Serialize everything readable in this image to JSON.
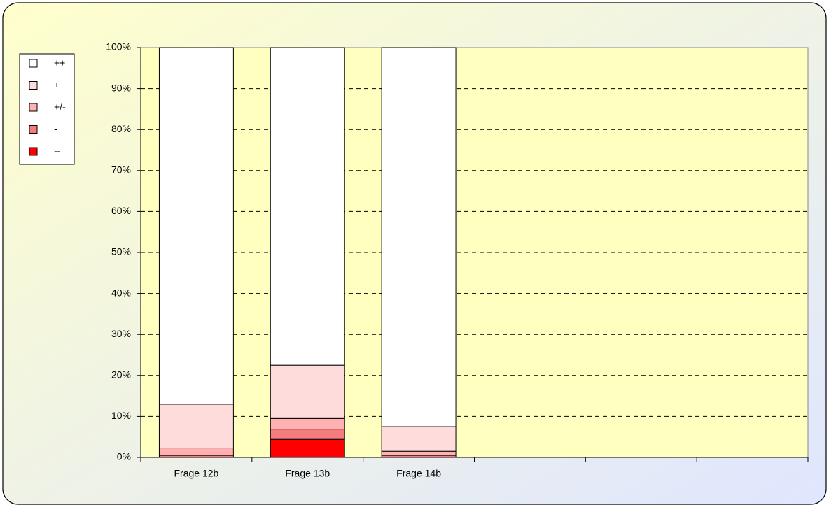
{
  "chart_data": {
    "type": "stacked_bar",
    "categories": [
      "Frage 12b",
      "Frage 13b",
      "Frage 14b",
      null,
      null,
      null
    ],
    "series": [
      {
        "name": "--",
        "color": "#ff0000",
        "values": [
          0,
          4.4,
          0,
          null,
          null,
          null
        ]
      },
      {
        "name": "-",
        "color": "#f47c7c",
        "values": [
          0.5,
          2.5,
          0.5,
          null,
          null,
          null
        ]
      },
      {
        "name": "+/-",
        "color": "#ffb0b0",
        "values": [
          1.8,
          2.6,
          1.0,
          null,
          null,
          null
        ]
      },
      {
        "name": "+",
        "color": "#ffdcdc",
        "values": [
          10.7,
          13.0,
          6.0,
          null,
          null,
          null
        ]
      },
      {
        "name": "++",
        "color": "#ffffff",
        "values": [
          87.0,
          77.5,
          92.5,
          null,
          null,
          null
        ]
      }
    ],
    "ylim": [
      0,
      100
    ],
    "yticks": [
      {
        "value": 0,
        "label": "0%"
      },
      {
        "value": 10,
        "label": "10%"
      },
      {
        "value": 20,
        "label": "20%"
      },
      {
        "value": 30,
        "label": "30%"
      },
      {
        "value": 40,
        "label": "40%"
      },
      {
        "value": 50,
        "label": "50%"
      },
      {
        "value": 60,
        "label": "60%"
      },
      {
        "value": 70,
        "label": "70%"
      },
      {
        "value": 80,
        "label": "80%"
      },
      {
        "value": 90,
        "label": "90%"
      },
      {
        "value": 100,
        "label": "100%"
      }
    ],
    "grid": true,
    "legend": "top-left"
  }
}
